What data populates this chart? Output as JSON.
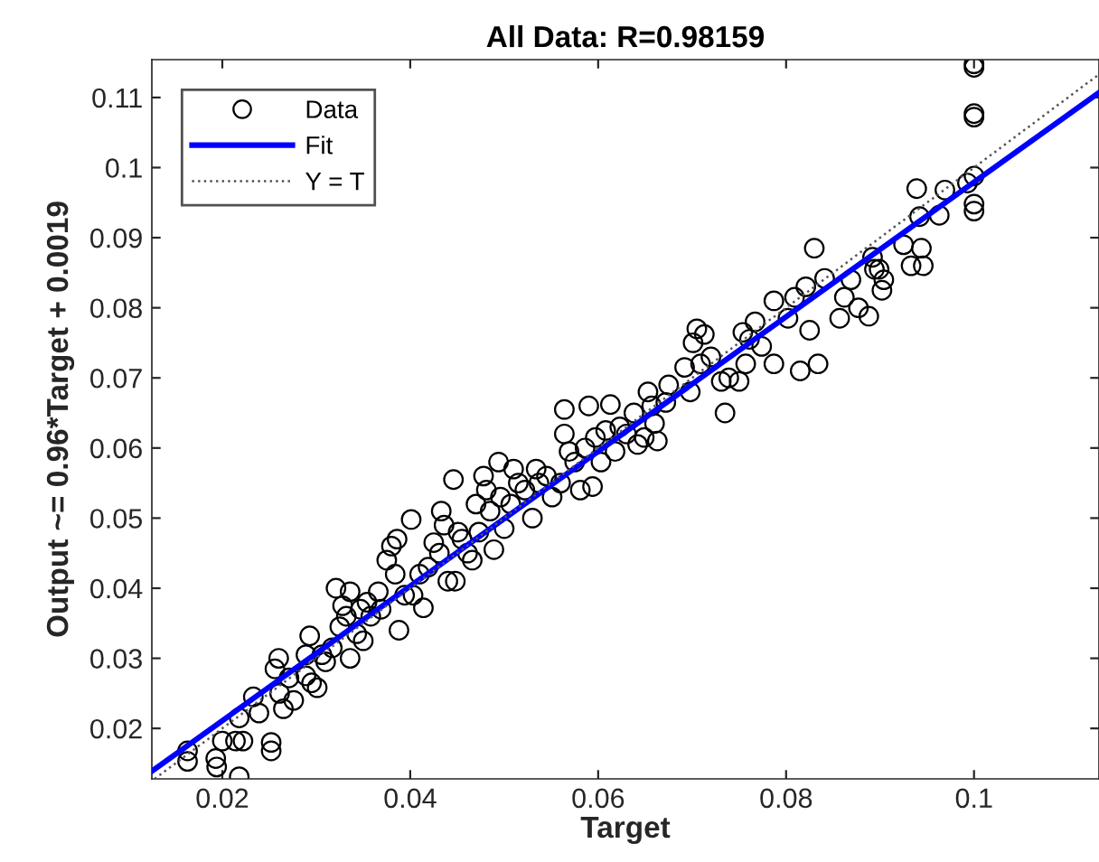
{
  "chart_data": {
    "type": "scatter",
    "title": "All Data: R=0.98159",
    "xlabel": "Target",
    "ylabel": "Output ~= 0.96*Target + 0.0019",
    "xlim": [
      0.0125,
      0.1133
    ],
    "ylim": [
      0.0128,
      0.1154
    ],
    "xticks": [
      0.02,
      0.04,
      0.06,
      0.08,
      0.1
    ],
    "yticks": [
      0.02,
      0.03,
      0.04,
      0.05,
      0.06,
      0.07,
      0.08,
      0.09,
      0.1,
      0.11
    ],
    "grid": false,
    "legend": "top left",
    "series": [
      {
        "name": "Data",
        "marker": "circle",
        "color": "#000000",
        "x": [
          0.0163,
          0.0163,
          0.0193,
          0.0194,
          0.02,
          0.0218,
          0.0214,
          0.0222,
          0.0218,
          0.0233,
          0.0239,
          0.0252,
          0.0252,
          0.0256,
          0.026,
          0.0261,
          0.0265,
          0.0276,
          0.0271,
          0.0289,
          0.0289,
          0.0293,
          0.0301,
          0.0295,
          0.0306,
          0.031,
          0.0317,
          0.0321,
          0.0325,
          0.0328,
          0.0332,
          0.0336,
          0.0336,
          0.0343,
          0.0347,
          0.035,
          0.0354,
          0.0358,
          0.0366,
          0.0369,
          0.0375,
          0.038,
          0.0386,
          0.0388,
          0.0384,
          0.0394,
          0.0401,
          0.0403,
          0.041,
          0.0414,
          0.0419,
          0.0425,
          0.0431,
          0.0433,
          0.0436,
          0.044,
          0.0446,
          0.0448,
          0.0451,
          0.0455,
          0.0461,
          0.0466,
          0.047,
          0.0473,
          0.0478,
          0.0481,
          0.0485,
          0.0489,
          0.0494,
          0.0496,
          0.05,
          0.0507,
          0.051,
          0.0515,
          0.0522,
          0.053,
          0.0534,
          0.0537,
          0.0545,
          0.0551,
          0.056,
          0.0564,
          0.0564,
          0.0569,
          0.0575,
          0.0581,
          0.0586,
          0.059,
          0.0594,
          0.0597,
          0.0603,
          0.0608,
          0.0613,
          0.0618,
          0.0623,
          0.063,
          0.0638,
          0.0642,
          0.0649,
          0.0653,
          0.0657,
          0.066,
          0.0663,
          0.0672,
          0.0675,
          0.0692,
          0.0698,
          0.0701,
          0.0705,
          0.0709,
          0.0713,
          0.072,
          0.0731,
          0.0735,
          0.0739,
          0.075,
          0.0754,
          0.0757,
          0.0761,
          0.0767,
          0.0774,
          0.0787,
          0.0787,
          0.0802,
          0.0809,
          0.0815,
          0.0821,
          0.0825,
          0.083,
          0.0834,
          0.0841,
          0.0857,
          0.0862,
          0.0869,
          0.0877,
          0.0888,
          0.0892,
          0.0894,
          0.0899,
          0.0902,
          0.0904,
          0.0925,
          0.0933,
          0.0939,
          0.0942,
          0.0944,
          0.0946,
          0.0963,
          0.0969,
          0.0993,
          0.1,
          0.1,
          0.1,
          0.1,
          0.1,
          0.1,
          0.1
        ],
        "values": [
          0.0168,
          0.0153,
          0.0157,
          0.0145,
          0.0182,
          0.0131,
          0.0182,
          0.0182,
          0.0215,
          0.0245,
          0.0222,
          0.018,
          0.0168,
          0.0285,
          0.03,
          0.025,
          0.0228,
          0.024,
          0.0272,
          0.0275,
          0.0305,
          0.0332,
          0.0258,
          0.0265,
          0.0305,
          0.0295,
          0.0315,
          0.04,
          0.0345,
          0.0375,
          0.036,
          0.0395,
          0.03,
          0.0335,
          0.037,
          0.0325,
          0.038,
          0.036,
          0.0395,
          0.037,
          0.044,
          0.046,
          0.047,
          0.034,
          0.042,
          0.039,
          0.0498,
          0.039,
          0.042,
          0.0372,
          0.043,
          0.0465,
          0.045,
          0.051,
          0.049,
          0.041,
          0.0555,
          0.041,
          0.048,
          0.047,
          0.045,
          0.044,
          0.052,
          0.048,
          0.056,
          0.054,
          0.051,
          0.0455,
          0.058,
          0.053,
          0.0485,
          0.052,
          0.057,
          0.055,
          0.054,
          0.05,
          0.057,
          0.055,
          0.056,
          0.053,
          0.055,
          0.0655,
          0.062,
          0.0595,
          0.058,
          0.054,
          0.06,
          0.066,
          0.0545,
          0.0615,
          0.058,
          0.0625,
          0.0662,
          0.0595,
          0.063,
          0.062,
          0.065,
          0.0605,
          0.0615,
          0.068,
          0.066,
          0.0635,
          0.061,
          0.0665,
          0.069,
          0.0715,
          0.068,
          0.075,
          0.077,
          0.072,
          0.0762,
          0.073,
          0.0695,
          0.065,
          0.07,
          0.0695,
          0.0765,
          0.072,
          0.0755,
          0.078,
          0.0745,
          0.072,
          0.081,
          0.0785,
          0.0815,
          0.071,
          0.083,
          0.0768,
          0.0885,
          0.072,
          0.0842,
          0.0785,
          0.0815,
          0.084,
          0.08,
          0.0788,
          0.0872,
          0.0855,
          0.0855,
          0.0825,
          0.084,
          0.089,
          0.086,
          0.097,
          0.093,
          0.0885,
          0.086,
          0.0932,
          0.0968,
          0.0978,
          0.0988,
          0.0948,
          0.0938,
          0.1077,
          0.1072,
          0.1148,
          0.1143
        ]
      },
      {
        "name": "Fit",
        "type": "line",
        "line_style": "solid",
        "color": "#0000ff",
        "x": [
          0.0125,
          0.1133
        ],
        "values": [
          0.0139,
          0.1107
        ]
      },
      {
        "name": "Y = T",
        "type": "line",
        "line_style": "dotted",
        "color": "#555555",
        "x": [
          0.0128,
          0.1133
        ],
        "values": [
          0.0128,
          0.1133
        ]
      }
    ]
  }
}
